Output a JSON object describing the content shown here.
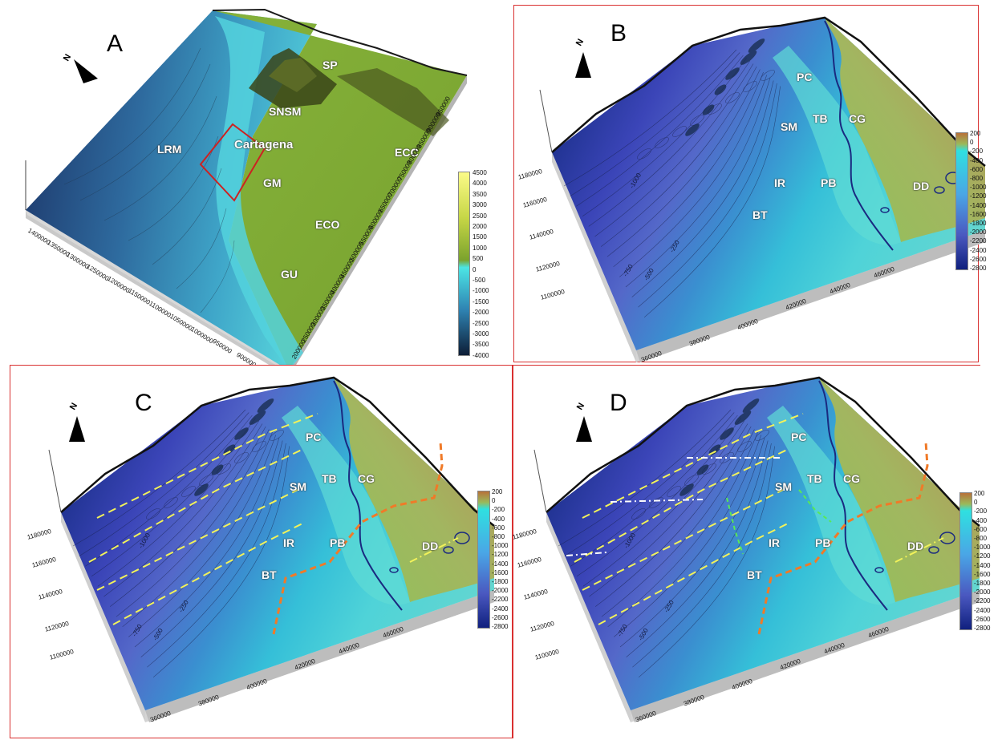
{
  "panels": {
    "A": {
      "label": "A",
      "sites": [
        "SP",
        "SNSM",
        "Cartagena",
        "LRM",
        "GM",
        "ECC",
        "ECO",
        "GU"
      ],
      "colorbar_ticks": [
        "4500",
        "4000",
        "3500",
        "3000",
        "2500",
        "2000",
        "1500",
        "1000",
        "500",
        "0",
        "-500",
        "-1000",
        "-1500",
        "-2000",
        "-2500",
        "-3000",
        "-3500",
        "-4000"
      ],
      "y_ticks": [
        "1400000",
        "1350000",
        "1300000",
        "1250000",
        "1200000",
        "1150000",
        "1100000",
        "1050000",
        "1000000",
        "950000",
        "900000"
      ],
      "x_ticks": [
        "200000",
        "250000",
        "300000",
        "350000",
        "400000",
        "450000",
        "500000",
        "550000",
        "600000",
        "650000",
        "700000",
        "750000",
        "800000",
        "850000",
        "900000",
        "950000"
      ]
    },
    "B": {
      "label": "B",
      "sites": [
        "PC",
        "SM",
        "TB",
        "CG",
        "IR",
        "PB",
        "BT",
        "DD"
      ],
      "colorbar_ticks": [
        "200",
        "0",
        "-200",
        "-400",
        "-600",
        "-800",
        "-1000",
        "-1200",
        "-1400",
        "-1600",
        "-1800",
        "-2000",
        "-2200",
        "-2400",
        "-2600",
        "-2800"
      ],
      "y_ticks": [
        "1180000",
        "1160000",
        "1140000",
        "1120000",
        "1100000"
      ],
      "x_ticks": [
        "360000",
        "380000",
        "400000",
        "420000",
        "440000",
        "460000"
      ]
    },
    "C": {
      "label": "C",
      "sites": [
        "PC",
        "SM",
        "TB",
        "CG",
        "IR",
        "PB",
        "BT",
        "DD"
      ],
      "colorbar_ticks": [
        "200",
        "0",
        "-200",
        "-400",
        "-600",
        "-800",
        "-1000",
        "-1200",
        "-1400",
        "-1600",
        "-1800",
        "-2000",
        "-2200",
        "-2400",
        "-2600",
        "-2800"
      ],
      "y_ticks": [
        "1180000",
        "1160000",
        "1140000",
        "1120000",
        "1100000"
      ],
      "x_ticks": [
        "360000",
        "380000",
        "400000",
        "420000",
        "440000",
        "460000"
      ]
    },
    "D": {
      "label": "D",
      "sites": [
        "PC",
        "SM",
        "TB",
        "CG",
        "IR",
        "PB",
        "BT",
        "DD"
      ],
      "colorbar_ticks": [
        "200",
        "0",
        "-200",
        "-400",
        "-600",
        "-800",
        "-1000",
        "-1200",
        "-1400",
        "-1600",
        "-1800",
        "-2000",
        "-2200",
        "-2400",
        "-2600",
        "-2800"
      ],
      "y_ticks": [
        "1180000",
        "1160000",
        "1140000",
        "1120000",
        "1100000"
      ],
      "x_ticks": [
        "360000",
        "380000",
        "400000",
        "420000",
        "440000",
        "460000"
      ]
    }
  },
  "contour_labels": [
    "-1000",
    "-750",
    "-500",
    "-250"
  ],
  "north_label": "N",
  "colors": {
    "frame_red": "#d93030",
    "panel_a_box": "#cc2222",
    "fault_yellow": "#f2f25a",
    "fault_orange": "#f07a28",
    "fault_white": "#ffffff",
    "fault_green": "#58e858",
    "coastline": "#1a2a80"
  }
}
